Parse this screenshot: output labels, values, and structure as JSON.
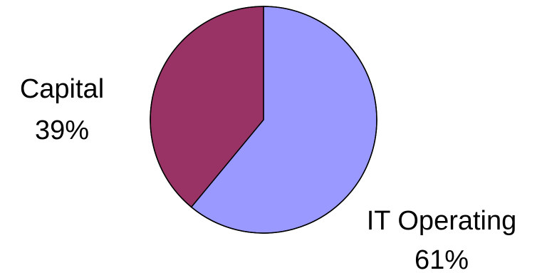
{
  "chart_data": {
    "type": "pie",
    "title": "",
    "start_angle_deg": 0,
    "direction": "clockwise",
    "slices": [
      {
        "label": "IT Operating",
        "percent_label": "61%",
        "value": 61,
        "color": "#9999ff",
        "label_position": "bottom-right"
      },
      {
        "label": "Capital",
        "percent_label": "39%",
        "value": 39,
        "color": "#993366",
        "label_position": "left"
      }
    ],
    "slice_border_color": "#000000",
    "legend": "none"
  }
}
